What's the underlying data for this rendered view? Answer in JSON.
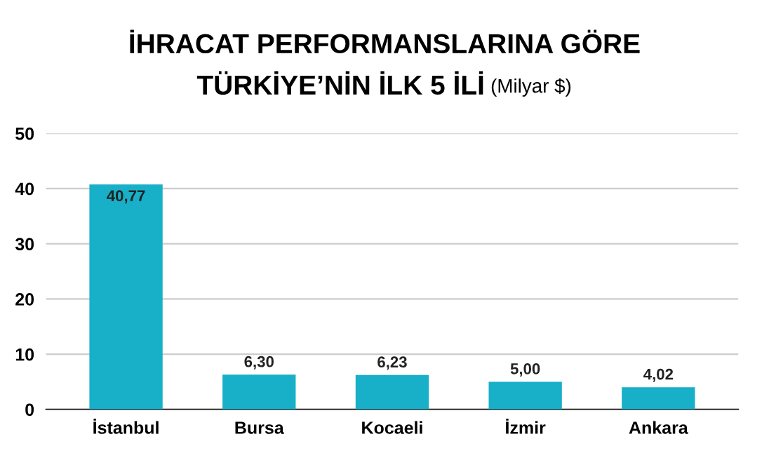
{
  "chart_data": {
    "type": "bar",
    "title": "İHRACAT PERFORMANSLARINA GÖRE\nTÜRKİYE’NİN İLK 5 İLİ",
    "subtitle": "(Milyar $)",
    "categories": [
      "İstanbul",
      "Bursa",
      "Kocaeli",
      "İzmir",
      "Ankara"
    ],
    "values": [
      40.77,
      6.3,
      6.23,
      5.0,
      4.02
    ],
    "value_labels": [
      "40,77",
      "6,30",
      "6,23",
      "5,00",
      "4,02"
    ],
    "color": "#17b0c8",
    "ylim": [
      0,
      50
    ],
    "yticks": [
      0,
      10,
      20,
      30,
      40,
      50
    ],
    "grid": "y",
    "legend": false
  }
}
